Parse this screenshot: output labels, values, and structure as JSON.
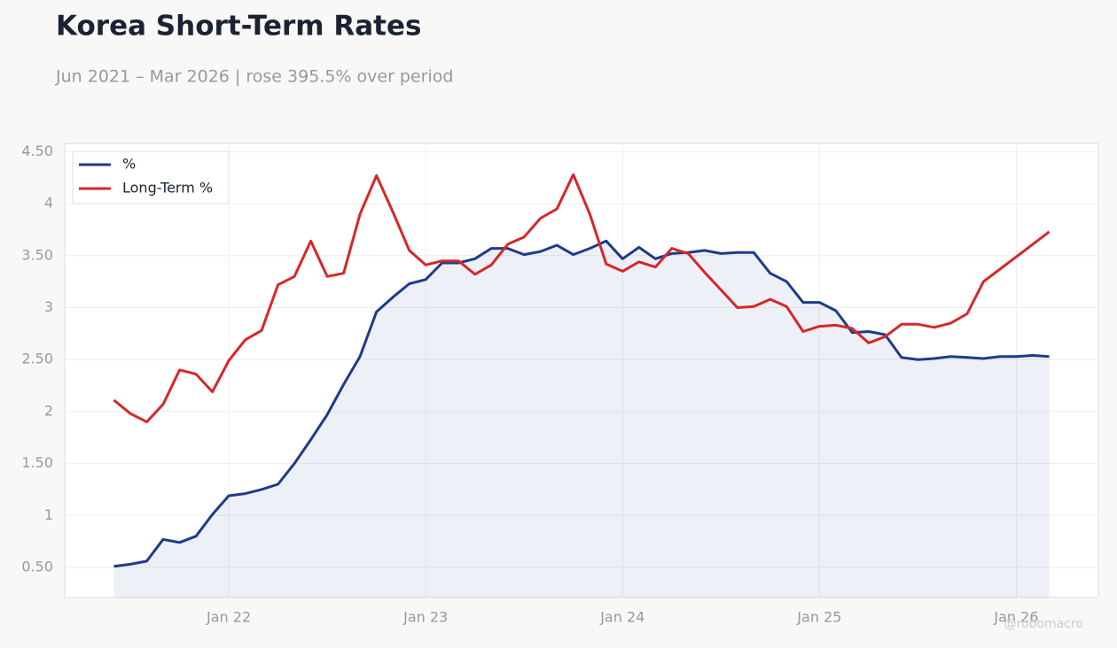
{
  "chart_data": {
    "type": "line",
    "title": "Korea Short-Term Rates",
    "subtitle": "Jun 2021 – Mar 2026 | rose 395.5% over period",
    "watermark": "@robomacro",
    "x": [
      "2021-06",
      "2021-07",
      "2021-08",
      "2021-09",
      "2021-10",
      "2021-11",
      "2021-12",
      "2022-01",
      "2022-02",
      "2022-03",
      "2022-04",
      "2022-05",
      "2022-06",
      "2022-07",
      "2022-08",
      "2022-09",
      "2022-10",
      "2022-11",
      "2022-12",
      "2023-01",
      "2023-02",
      "2023-03",
      "2023-04",
      "2023-05",
      "2023-06",
      "2023-07",
      "2023-08",
      "2023-09",
      "2023-10",
      "2023-11",
      "2023-12",
      "2024-01",
      "2024-02",
      "2024-03",
      "2024-04",
      "2024-05",
      "2024-06",
      "2024-07",
      "2024-08",
      "2024-09",
      "2024-10",
      "2024-11",
      "2024-12",
      "2025-01",
      "2025-02",
      "2025-03",
      "2025-04",
      "2025-05",
      "2025-06",
      "2025-07",
      "2025-08",
      "2025-09",
      "2025-10",
      "2025-11",
      "2025-12",
      "2026-01",
      "2026-02",
      "2026-03"
    ],
    "series": [
      {
        "name": "%",
        "color": "#1f3a8a",
        "area": true,
        "values": [
          0.51,
          0.53,
          0.56,
          0.77,
          0.74,
          0.8,
          1.01,
          1.19,
          1.21,
          1.25,
          1.3,
          1.5,
          1.73,
          1.97,
          2.26,
          2.53,
          2.96,
          3.1,
          3.23,
          3.27,
          3.43,
          3.43,
          3.47,
          3.57,
          3.57,
          3.51,
          3.54,
          3.6,
          3.51,
          3.57,
          3.64,
          3.47,
          3.58,
          3.47,
          3.52,
          3.53,
          3.55,
          3.52,
          3.53,
          3.53,
          3.33,
          3.25,
          3.05,
          3.05,
          2.97,
          2.76,
          2.77,
          2.74,
          2.52,
          2.5,
          2.51,
          2.53,
          2.52,
          2.51,
          2.53,
          2.53,
          2.54,
          2.53
        ]
      },
      {
        "name": "Long-Term %",
        "color": "#d62728",
        "values": [
          2.11,
          1.98,
          1.9,
          2.07,
          2.4,
          2.36,
          2.19,
          2.49,
          2.69,
          2.78,
          3.22,
          3.3,
          3.64,
          3.3,
          3.33,
          3.9,
          4.27,
          3.92,
          3.55,
          3.41,
          3.45,
          3.45,
          3.32,
          3.41,
          3.61,
          3.68,
          3.86,
          3.95,
          4.28,
          3.9,
          3.42,
          3.35,
          3.44,
          3.39,
          3.57,
          3.52,
          3.34,
          3.17,
          3.0,
          3.01,
          3.08,
          3.01,
          2.77,
          2.82,
          2.83,
          2.8,
          2.66,
          2.72,
          2.84,
          2.84,
          2.81,
          2.85,
          2.94,
          3.25,
          3.37,
          3.49,
          3.61,
          3.73
        ]
      }
    ],
    "xlim": [
      "2021-03",
      "2026-06"
    ],
    "xticks": [
      {
        "value": "2022-01",
        "label": "Jan 22"
      },
      {
        "value": "2023-01",
        "label": "Jan 23"
      },
      {
        "value": "2024-01",
        "label": "Jan 24"
      },
      {
        "value": "2025-01",
        "label": "Jan 25"
      },
      {
        "value": "2026-01",
        "label": "Jan 26"
      }
    ],
    "ylim": [
      0.21,
      4.58
    ],
    "yticks": [
      {
        "value": 0.5,
        "label": "0.50"
      },
      1,
      {
        "value": 1.5,
        "label": "1.50"
      },
      2,
      {
        "value": 2.5,
        "label": "2.50"
      },
      3,
      {
        "value": 3.5,
        "label": "3.50"
      },
      4,
      {
        "value": 4.5,
        "label": "4.50"
      }
    ],
    "grid": true,
    "legend": "upper-left"
  }
}
